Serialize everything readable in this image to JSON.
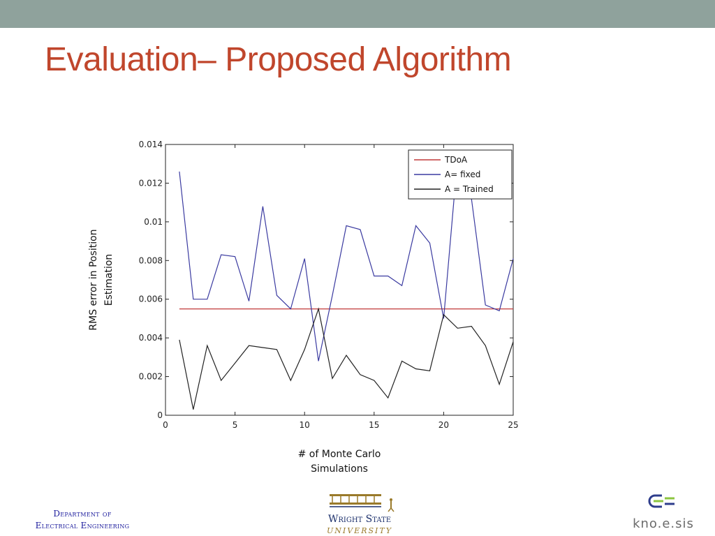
{
  "slide": {
    "title": "Evaluation– Proposed Algorithm"
  },
  "colors": {
    "top_bar": "#8fa29c",
    "title": "#c0462c",
    "tdoa": "#c03a3a",
    "fixed": "#3a3aa0",
    "trained": "#222222"
  },
  "chart_data": {
    "type": "line",
    "xlabel": "# of Monte Carlo Simulations",
    "ylabel": "RMS error in Position Estimation",
    "xlabel_lines": [
      "# of Monte Carlo",
      "Simulations"
    ],
    "ylabel_lines": [
      "RMS error in Position",
      "Estimation"
    ],
    "xlim": [
      0,
      25
    ],
    "ylim": [
      0,
      0.014
    ],
    "xticks": [
      "0",
      "5",
      "10",
      "15",
      "20",
      "25"
    ],
    "yticks": [
      "0",
      "0.002",
      "0.004",
      "0.006",
      "0.008",
      "0.01",
      "0.012",
      "0.014"
    ],
    "grid": false,
    "legend_position": "top-right",
    "x": [
      1,
      2,
      3,
      4,
      5,
      6,
      7,
      8,
      9,
      10,
      11,
      12,
      13,
      14,
      15,
      16,
      17,
      18,
      19,
      20,
      21,
      22,
      23,
      24,
      25
    ],
    "series": [
      {
        "name": "TDoA",
        "color": "#c03a3a",
        "values": [
          0.0055,
          0.0055,
          0.0055,
          0.0055,
          0.0055,
          0.0055,
          0.0055,
          0.0055,
          0.0055,
          0.0055,
          0.0055,
          0.0055,
          0.0055,
          0.0055,
          0.0055,
          0.0055,
          0.0055,
          0.0055,
          0.0055,
          0.0055,
          0.0055,
          0.0055,
          0.0055,
          0.0055,
          0.0055
        ]
      },
      {
        "name": "A= fixed",
        "color": "#3a3aa0",
        "values": [
          0.0126,
          0.006,
          0.006,
          0.0083,
          0.0082,
          0.0059,
          0.0108,
          0.0062,
          0.0055,
          0.0081,
          0.0028,
          0.0062,
          0.0098,
          0.0096,
          0.0072,
          0.0072,
          0.0067,
          0.0098,
          0.0089,
          0.005,
          0.0133,
          0.0112,
          0.0057,
          0.0054,
          0.0081
        ]
      },
      {
        "name": "A = Trained",
        "color": "#222222",
        "values": [
          0.0039,
          0.0003,
          0.0036,
          0.0018,
          0.0027,
          0.0036,
          0.0035,
          0.0034,
          0.0018,
          0.0034,
          0.0055,
          0.0019,
          0.0031,
          0.0021,
          0.0018,
          0.0009,
          0.0028,
          0.0024,
          0.0023,
          0.0052,
          0.0045,
          0.0046,
          0.0036,
          0.0016,
          0.0038
        ]
      }
    ]
  },
  "footer": {
    "dept_line1": "Department of",
    "dept_line2": "Electrical Engineering",
    "wsu_name": "Wright State",
    "wsu_university": "UNIVERSITY",
    "knoesis": "kno.e.sis"
  }
}
